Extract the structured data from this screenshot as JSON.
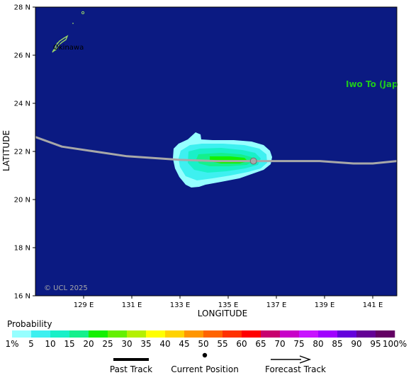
{
  "map": {
    "background": "#0b1a82",
    "x_title": "LONGITUDE",
    "y_title": "LATITUDE",
    "lon_ticks": [
      "129 E",
      "131 E",
      "133 E",
      "135 E",
      "137 E",
      "139 E",
      "141 E"
    ],
    "lat_ticks": [
      "28 N",
      "26 N",
      "24 N",
      "22 N",
      "20 N",
      "18 N",
      "16 N"
    ],
    "lon_range": [
      127.0,
      142.0
    ],
    "lat_range": [
      16.0,
      28.0
    ],
    "copyright": "© UCL 2025",
    "places": [
      {
        "name": "Okinawa",
        "color": "#ffffff"
      },
      {
        "name": "Iwo To (Jap",
        "color": "#1ec81e"
      }
    ]
  },
  "track": {
    "color": "#a8a8a8",
    "points": [
      [
        127.0,
        22.6
      ],
      [
        128.1,
        22.2
      ],
      [
        130.8,
        21.8
      ],
      [
        133.0,
        21.65
      ],
      [
        134.5,
        21.6
      ],
      [
        136.0,
        21.6
      ],
      [
        137.5,
        21.6
      ],
      [
        138.8,
        21.6
      ],
      [
        140.2,
        21.5
      ],
      [
        141.0,
        21.5
      ],
      [
        142.0,
        21.6
      ]
    ],
    "current_position": [
      136.05,
      21.6
    ]
  },
  "legend": {
    "title": "Probability",
    "labels": [
      "1%",
      "5",
      "10",
      "15",
      "20",
      "25",
      "30",
      "35",
      "40",
      "45",
      "50",
      "55",
      "60",
      "65",
      "70",
      "75",
      "80",
      "85",
      "90",
      "95",
      "100%"
    ],
    "colors": [
      "#96ffff",
      "#3ef0f0",
      "#19f0c8",
      "#14f08c",
      "#14f000",
      "#64f000",
      "#b4f000",
      "#ffff00",
      "#ffd200",
      "#ff9600",
      "#ff6400",
      "#ff3200",
      "#ff0000",
      "#c8006e",
      "#c800c8",
      "#c814ff",
      "#a000ff",
      "#6400dc",
      "#640096",
      "#640064"
    ],
    "past_track": "Past Track",
    "current_position": "Current Position",
    "forecast_track": "Forecast Track"
  }
}
